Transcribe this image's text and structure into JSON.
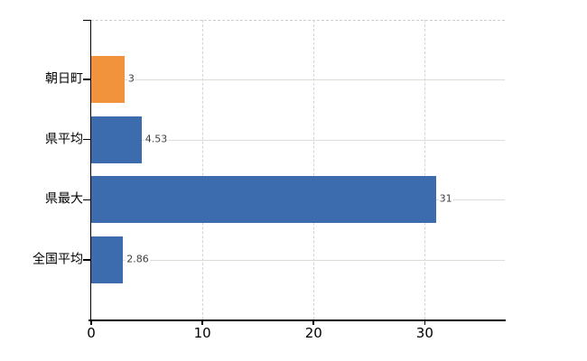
{
  "chart_data": {
    "type": "bar",
    "orientation": "horizontal",
    "title": "",
    "categories": [
      "朝日町",
      "県平均",
      "県最大",
      "全国平均"
    ],
    "values": [
      3,
      4.53,
      31,
      2.86
    ],
    "value_labels": [
      "3",
      "4.53",
      "31",
      "2.86"
    ],
    "series_colors": [
      "#f1923c",
      "#3c6cae",
      "#3c6cae",
      "#3c6cae"
    ],
    "x_axis": {
      "min": 0,
      "max": 37.2,
      "tick_values": [
        0,
        10,
        20,
        30
      ],
      "tick_labels": [
        "0",
        "10",
        "20",
        "30"
      ]
    },
    "y_axis": {
      "tick_labels": [
        "朝日町",
        "県平均",
        "県最大",
        "全国平均"
      ]
    },
    "legend": null,
    "grid": {
      "vertical": "dashed",
      "horizontal": "solid",
      "top_border": "dashed"
    }
  },
  "colors": {
    "background": "#ffffff",
    "axis": "#000000",
    "grid_vertical": "#d4d4d4",
    "grid_horizontal": "#d9ded6",
    "grid_top": "#cfcfcf",
    "category_label": "#000000",
    "value_label": "#3d3d3d"
  }
}
